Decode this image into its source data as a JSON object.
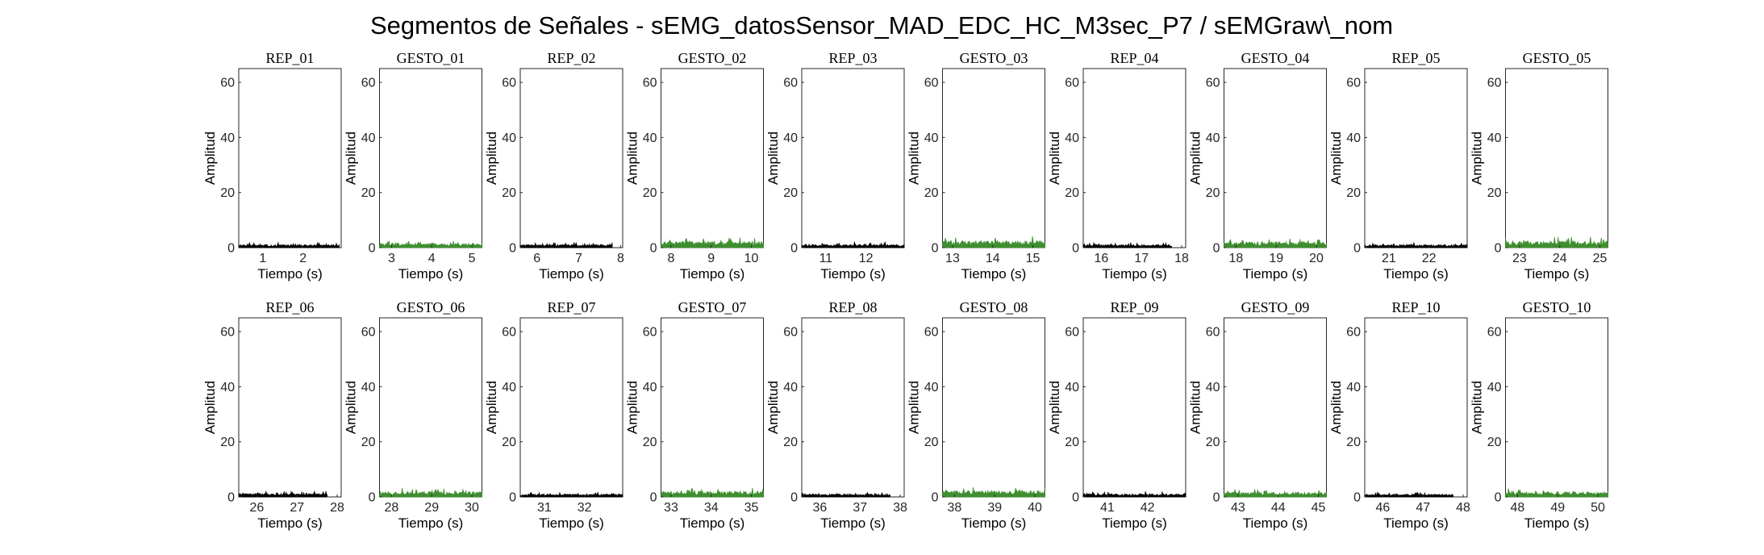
{
  "figure": {
    "title": "Segmentos de Señales - sEMG_datosSensor_MAD_EDC_HC_M3sec_P7 / sEMGraw\\_nom"
  },
  "chart_data": [
    {
      "type": "area",
      "title": "REP_01",
      "xlabel": "Tiempo (s)",
      "ylabel": "Amplitud",
      "xlim": [
        0.4,
        2.95
      ],
      "ylim": [
        0,
        65
      ],
      "xticks": [
        1,
        2
      ],
      "yticks": [
        0,
        20,
        40,
        60
      ],
      "color": "#000000",
      "x_range": [
        0.4,
        2.9
      ],
      "amplitude_max": 1.8,
      "grid": false
    },
    {
      "type": "area",
      "title": "GESTO_01",
      "xlabel": "Tiempo (s)",
      "ylabel": "Amplitud",
      "xlim": [
        2.7,
        5.25
      ],
      "ylim": [
        0,
        65
      ],
      "xticks": [
        3,
        4,
        5
      ],
      "yticks": [
        0,
        20,
        40,
        60
      ],
      "color": "#3f8f30",
      "x_range": [
        2.7,
        5.25
      ],
      "amplitude_max": 2.8,
      "grid": false
    },
    {
      "type": "area",
      "title": "REP_02",
      "xlabel": "Tiempo (s)",
      "ylabel": "Amplitud",
      "xlim": [
        5.6,
        8.05
      ],
      "ylim": [
        0,
        65
      ],
      "xticks": [
        6,
        7,
        8
      ],
      "yticks": [
        0,
        20,
        40,
        60
      ],
      "color": "#000000",
      "x_range": [
        5.6,
        7.8
      ],
      "amplitude_max": 1.9,
      "grid": false
    },
    {
      "type": "area",
      "title": "GESTO_02",
      "xlabel": "Tiempo (s)",
      "ylabel": "Amplitud",
      "xlim": [
        7.75,
        10.3
      ],
      "ylim": [
        0,
        65
      ],
      "xticks": [
        8,
        9,
        10
      ],
      "yticks": [
        0,
        20,
        40,
        60
      ],
      "color": "#3f8f30",
      "x_range": [
        7.75,
        10.3
      ],
      "amplitude_max": 3.8,
      "grid": false
    },
    {
      "type": "area",
      "title": "REP_03",
      "xlabel": "Tiempo (s)",
      "ylabel": "Amplitud",
      "xlim": [
        10.4,
        12.95
      ],
      "ylim": [
        0,
        65
      ],
      "xticks": [
        11,
        12
      ],
      "yticks": [
        0,
        20,
        40,
        60
      ],
      "color": "#000000",
      "x_range": [
        10.4,
        12.95
      ],
      "amplitude_max": 2.0,
      "grid": false
    },
    {
      "type": "area",
      "title": "GESTO_03",
      "xlabel": "Tiempo (s)",
      "ylabel": "Amplitud",
      "xlim": [
        12.75,
        15.3
      ],
      "ylim": [
        0,
        65
      ],
      "xticks": [
        13,
        14,
        15
      ],
      "yticks": [
        0,
        20,
        40,
        60
      ],
      "color": "#3f8f30",
      "x_range": [
        12.75,
        15.3
      ],
      "amplitude_max": 4.2,
      "grid": false
    },
    {
      "type": "area",
      "title": "REP_04",
      "xlabel": "Tiempo (s)",
      "ylabel": "Amplitud",
      "xlim": [
        15.55,
        18.1
      ],
      "ylim": [
        0,
        65
      ],
      "xticks": [
        16,
        17,
        18
      ],
      "yticks": [
        0,
        20,
        40,
        60
      ],
      "color": "#000000",
      "x_range": [
        15.55,
        17.75
      ],
      "amplitude_max": 1.9,
      "grid": false
    },
    {
      "type": "area",
      "title": "GESTO_04",
      "xlabel": "Tiempo (s)",
      "ylabel": "Amplitud",
      "xlim": [
        17.7,
        20.25
      ],
      "ylim": [
        0,
        65
      ],
      "xticks": [
        18,
        19,
        20
      ],
      "yticks": [
        0,
        20,
        40,
        60
      ],
      "color": "#3f8f30",
      "x_range": [
        17.7,
        20.25
      ],
      "amplitude_max": 3.6,
      "grid": false
    },
    {
      "type": "area",
      "title": "REP_05",
      "xlabel": "Tiempo (s)",
      "ylabel": "Amplitud",
      "xlim": [
        20.4,
        22.95
      ],
      "ylim": [
        0,
        65
      ],
      "xticks": [
        21,
        22
      ],
      "yticks": [
        0,
        20,
        40,
        60
      ],
      "color": "#000000",
      "x_range": [
        20.4,
        22.95
      ],
      "amplitude_max": 1.9,
      "grid": false
    },
    {
      "type": "area",
      "title": "GESTO_05",
      "xlabel": "Tiempo (s)",
      "ylabel": "Amplitud",
      "xlim": [
        22.65,
        25.2
      ],
      "ylim": [
        0,
        65
      ],
      "xticks": [
        23,
        24,
        25
      ],
      "yticks": [
        0,
        20,
        40,
        60
      ],
      "color": "#3f8f30",
      "x_range": [
        22.65,
        25.2
      ],
      "amplitude_max": 4.0,
      "grid": false
    },
    {
      "type": "area",
      "title": "REP_06",
      "xlabel": "Tiempo (s)",
      "ylabel": "Amplitud",
      "xlim": [
        25.55,
        28.1
      ],
      "ylim": [
        0,
        65
      ],
      "xticks": [
        26,
        27,
        28
      ],
      "yticks": [
        0,
        20,
        40,
        60
      ],
      "color": "#000000",
      "x_range": [
        25.55,
        27.75
      ],
      "amplitude_max": 2.2,
      "grid": false
    },
    {
      "type": "area",
      "title": "GESTO_06",
      "xlabel": "Tiempo (s)",
      "ylabel": "Amplitud",
      "xlim": [
        27.7,
        30.25
      ],
      "ylim": [
        0,
        65
      ],
      "xticks": [
        28,
        29,
        30
      ],
      "yticks": [
        0,
        20,
        40,
        60
      ],
      "color": "#3f8f30",
      "x_range": [
        27.7,
        30.25
      ],
      "amplitude_max": 3.2,
      "grid": false
    },
    {
      "type": "area",
      "title": "REP_07",
      "xlabel": "Tiempo (s)",
      "ylabel": "Amplitud",
      "xlim": [
        30.4,
        32.95
      ],
      "ylim": [
        0,
        65
      ],
      "xticks": [
        31,
        32
      ],
      "yticks": [
        0,
        20,
        40,
        60
      ],
      "color": "#000000",
      "x_range": [
        30.4,
        32.95
      ],
      "amplitude_max": 1.8,
      "grid": false
    },
    {
      "type": "area",
      "title": "GESTO_07",
      "xlabel": "Tiempo (s)",
      "ylabel": "Amplitud",
      "xlim": [
        32.75,
        35.3
      ],
      "ylim": [
        0,
        65
      ],
      "xticks": [
        33,
        34,
        35
      ],
      "yticks": [
        0,
        20,
        40,
        60
      ],
      "color": "#3f8f30",
      "x_range": [
        32.75,
        35.3
      ],
      "amplitude_max": 3.4,
      "grid": false
    },
    {
      "type": "area",
      "title": "REP_08",
      "xlabel": "Tiempo (s)",
      "ylabel": "Amplitud",
      "xlim": [
        35.55,
        38.1
      ],
      "ylim": [
        0,
        65
      ],
      "xticks": [
        36,
        37,
        38
      ],
      "yticks": [
        0,
        20,
        40,
        60
      ],
      "color": "#000000",
      "x_range": [
        35.55,
        37.75
      ],
      "amplitude_max": 1.8,
      "grid": false
    },
    {
      "type": "area",
      "title": "GESTO_08",
      "xlabel": "Tiempo (s)",
      "ylabel": "Amplitud",
      "xlim": [
        37.7,
        40.25
      ],
      "ylim": [
        0,
        65
      ],
      "xticks": [
        38,
        39,
        40
      ],
      "yticks": [
        0,
        20,
        40,
        60
      ],
      "color": "#3f8f30",
      "x_range": [
        37.7,
        40.25
      ],
      "amplitude_max": 3.8,
      "grid": false
    },
    {
      "type": "area",
      "title": "REP_09",
      "xlabel": "Tiempo (s)",
      "ylabel": "Amplitud",
      "xlim": [
        40.4,
        42.95
      ],
      "ylim": [
        0,
        65
      ],
      "xticks": [
        41,
        42
      ],
      "yticks": [
        0,
        20,
        40,
        60
      ],
      "color": "#000000",
      "x_range": [
        40.4,
        42.95
      ],
      "amplitude_max": 1.9,
      "grid": false
    },
    {
      "type": "area",
      "title": "GESTO_09",
      "xlabel": "Tiempo (s)",
      "ylabel": "Amplitud",
      "xlim": [
        42.65,
        45.2
      ],
      "ylim": [
        0,
        65
      ],
      "xticks": [
        43,
        44,
        45
      ],
      "yticks": [
        0,
        20,
        40,
        60
      ],
      "color": "#3f8f30",
      "x_range": [
        42.65,
        45.2
      ],
      "amplitude_max": 2.8,
      "grid": false
    },
    {
      "type": "area",
      "title": "REP_10",
      "xlabel": "Tiempo (s)",
      "ylabel": "Amplitud",
      "xlim": [
        45.55,
        48.1
      ],
      "ylim": [
        0,
        65
      ],
      "xticks": [
        46,
        47,
        48
      ],
      "yticks": [
        0,
        20,
        40,
        60
      ],
      "color": "#000000",
      "x_range": [
        45.55,
        47.75
      ],
      "amplitude_max": 1.8,
      "grid": false
    },
    {
      "type": "area",
      "title": "GESTO_10",
      "xlabel": "Tiempo (s)",
      "ylabel": "Amplitud",
      "xlim": [
        47.7,
        50.25
      ],
      "ylim": [
        0,
        65
      ],
      "xticks": [
        48,
        49,
        50
      ],
      "yticks": [
        0,
        20,
        40,
        60
      ],
      "color": "#3f8f30",
      "x_range": [
        47.7,
        50.25
      ],
      "amplitude_max": 3.2,
      "grid": false
    }
  ]
}
